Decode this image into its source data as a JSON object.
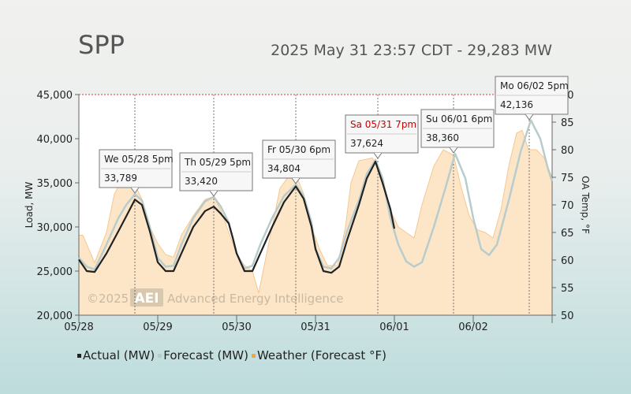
{
  "title": "SPP",
  "subtitle": "2025 May 31 23:57 CDT - 29,283 MW",
  "watermark": {
    "copyright": "©2025",
    "logo": "AEI",
    "company": "Advanced Energy Intelligence"
  },
  "legend": [
    {
      "label": "Actual (MW)",
      "color": "#222222"
    },
    {
      "label": "Forecast (MW)",
      "color": "#b9cccc"
    },
    {
      "label": "Weather (Forecast °F)",
      "color": "#f8a23a"
    }
  ],
  "chart_data": {
    "type": "line",
    "x_axis": {
      "ticks": [
        "05/28",
        "05/29",
        "05/30",
        "05/31",
        "06/01",
        "06/02"
      ],
      "range": [
        "2025-05-28T00:00",
        "2025-06-03T00:00"
      ]
    },
    "y_left": {
      "label": "Load, MW",
      "min": 20000,
      "max": 45000,
      "ticks": [
        "20,000",
        "25,000",
        "30,000",
        "35,000",
        "40,000",
        "45,000"
      ]
    },
    "y_right": {
      "label": "OA Temp, °F",
      "min": 50,
      "max": 90,
      "ticks": [
        "50",
        "55",
        "60",
        "65",
        "70",
        "75",
        "80",
        "85",
        "90"
      ]
    },
    "series": [
      {
        "name": "Actual (MW)",
        "points": [
          [
            0.0,
            26300
          ],
          [
            0.1,
            25000
          ],
          [
            0.2,
            24900
          ],
          [
            0.35,
            27000
          ],
          [
            0.5,
            29500
          ],
          [
            0.6,
            31200
          ],
          [
            0.71,
            33100
          ],
          [
            0.8,
            32500
          ],
          [
            0.9,
            29500
          ],
          [
            1.0,
            26000
          ],
          [
            1.1,
            25000
          ],
          [
            1.2,
            25000
          ],
          [
            1.3,
            27000
          ],
          [
            1.45,
            30000
          ],
          [
            1.6,
            31800
          ],
          [
            1.71,
            32300
          ],
          [
            1.8,
            31500
          ],
          [
            1.9,
            30400
          ],
          [
            1.95,
            28800
          ],
          [
            2.0,
            27000
          ],
          [
            2.1,
            25000
          ],
          [
            2.2,
            25000
          ],
          [
            2.3,
            27000
          ],
          [
            2.45,
            30000
          ],
          [
            2.6,
            32800
          ],
          [
            2.75,
            34600
          ],
          [
            2.85,
            33200
          ],
          [
            2.95,
            30000
          ],
          [
            3.0,
            27500
          ],
          [
            3.1,
            25000
          ],
          [
            3.2,
            24800
          ],
          [
            3.3,
            25500
          ],
          [
            3.4,
            28500
          ],
          [
            3.55,
            32500
          ],
          [
            3.65,
            35500
          ],
          [
            3.76,
            37400
          ],
          [
            3.85,
            35000
          ],
          [
            3.95,
            32000
          ],
          [
            4.0,
            29800
          ]
        ]
      },
      {
        "name": "Forecast (MW)",
        "points": [
          [
            3.95,
            31000
          ],
          [
            4.05,
            28000
          ],
          [
            4.15,
            26100
          ],
          [
            4.25,
            25500
          ],
          [
            4.35,
            26000
          ],
          [
            4.5,
            30000
          ],
          [
            4.65,
            34500
          ],
          [
            4.77,
            38300
          ],
          [
            4.9,
            35500
          ],
          [
            5.0,
            31000
          ],
          [
            5.1,
            27500
          ],
          [
            5.2,
            26800
          ],
          [
            5.3,
            28000
          ],
          [
            5.45,
            33000
          ],
          [
            5.6,
            38500
          ],
          [
            5.73,
            42100
          ],
          [
            5.85,
            40000
          ],
          [
            5.95,
            36500
          ],
          [
            6.0,
            35200
          ]
        ]
      },
      {
        "name": "Forecast (MW) history",
        "points": [
          [
            0.0,
            26500
          ],
          [
            0.1,
            25500
          ],
          [
            0.2,
            25200
          ],
          [
            0.35,
            28000
          ],
          [
            0.5,
            31000
          ],
          [
            0.6,
            32500
          ],
          [
            0.71,
            33700
          ],
          [
            0.8,
            33000
          ],
          [
            0.9,
            30000
          ],
          [
            1.0,
            26500
          ],
          [
            1.1,
            25500
          ],
          [
            1.2,
            25600
          ],
          [
            1.3,
            28000
          ],
          [
            1.45,
            31000
          ],
          [
            1.6,
            32900
          ],
          [
            1.71,
            33400
          ],
          [
            1.8,
            32300
          ],
          [
            1.9,
            30500
          ],
          [
            2.0,
            27000
          ],
          [
            2.1,
            25300
          ],
          [
            2.2,
            25600
          ],
          [
            2.3,
            28000
          ],
          [
            2.45,
            31000
          ],
          [
            2.6,
            33500
          ],
          [
            2.75,
            34800
          ],
          [
            2.85,
            33500
          ],
          [
            2.95,
            30500
          ],
          [
            3.0,
            27500
          ],
          [
            3.1,
            25500
          ],
          [
            3.2,
            25300
          ],
          [
            3.3,
            26500
          ],
          [
            3.4,
            29500
          ],
          [
            3.55,
            33000
          ],
          [
            3.65,
            36000
          ],
          [
            3.76,
            37600
          ],
          [
            3.85,
            35500
          ],
          [
            3.95,
            31000
          ]
        ]
      },
      {
        "name": "Weather (Forecast °F)",
        "points": [
          [
            0.0,
            64.5
          ],
          [
            0.05,
            64.5
          ],
          [
            0.2,
            59.5
          ],
          [
            0.35,
            65
          ],
          [
            0.45,
            72
          ],
          [
            0.55,
            74.5
          ],
          [
            0.7,
            74
          ],
          [
            0.8,
            71
          ],
          [
            0.9,
            66
          ],
          [
            1.0,
            63
          ],
          [
            1.1,
            61
          ],
          [
            1.2,
            60.5
          ],
          [
            1.3,
            64.5
          ],
          [
            1.45,
            68
          ],
          [
            1.6,
            71
          ],
          [
            1.71,
            71.5
          ],
          [
            1.8,
            69
          ],
          [
            1.9,
            65
          ],
          [
            2.0,
            61
          ],
          [
            2.1,
            59
          ],
          [
            2.2,
            58
          ],
          [
            2.28,
            54
          ],
          [
            2.35,
            59
          ],
          [
            2.45,
            66
          ],
          [
            2.55,
            73
          ],
          [
            2.65,
            75
          ],
          [
            2.75,
            75.5
          ],
          [
            2.85,
            72
          ],
          [
            2.95,
            66
          ],
          [
            3.05,
            62
          ],
          [
            3.15,
            59
          ],
          [
            3.28,
            59
          ],
          [
            3.38,
            66
          ],
          [
            3.45,
            74
          ],
          [
            3.55,
            78
          ],
          [
            3.72,
            78.5
          ],
          [
            3.85,
            75
          ],
          [
            3.95,
            69
          ],
          [
            4.05,
            66
          ],
          [
            4.15,
            65
          ],
          [
            4.25,
            64
          ],
          [
            4.35,
            70
          ],
          [
            4.5,
            77
          ],
          [
            4.62,
            80
          ],
          [
            4.75,
            79
          ],
          [
            4.85,
            73
          ],
          [
            4.95,
            68
          ],
          [
            5.05,
            65.5
          ],
          [
            5.15,
            65
          ],
          [
            5.25,
            64
          ],
          [
            5.35,
            69
          ],
          [
            5.45,
            77
          ],
          [
            5.55,
            83
          ],
          [
            5.62,
            83.5
          ],
          [
            5.7,
            80
          ],
          [
            5.8,
            80
          ],
          [
            5.9,
            78.5
          ],
          [
            6.0,
            75
          ]
        ]
      }
    ],
    "annotations": [
      {
        "date": "We 05/28 5pm",
        "value": "33,789",
        "x": 0.71,
        "y": 33789,
        "highlight": false
      },
      {
        "date": "Th 05/29 5pm",
        "value": "33,420",
        "x": 1.71,
        "y": 33420,
        "highlight": false
      },
      {
        "date": "Fr 05/30 6pm",
        "value": "34,804",
        "x": 2.75,
        "y": 34804,
        "highlight": false
      },
      {
        "date": "Sa 05/31 7pm",
        "value": "37,624",
        "x": 3.79,
        "y": 37624,
        "highlight": true
      },
      {
        "date": "Su 06/01 6pm",
        "value": "38,360",
        "x": 4.75,
        "y": 38360,
        "highlight": false
      },
      {
        "date": "Mo 06/02 5pm",
        "value": "42,136",
        "x": 5.71,
        "y": 42136,
        "highlight": false
      }
    ]
  }
}
